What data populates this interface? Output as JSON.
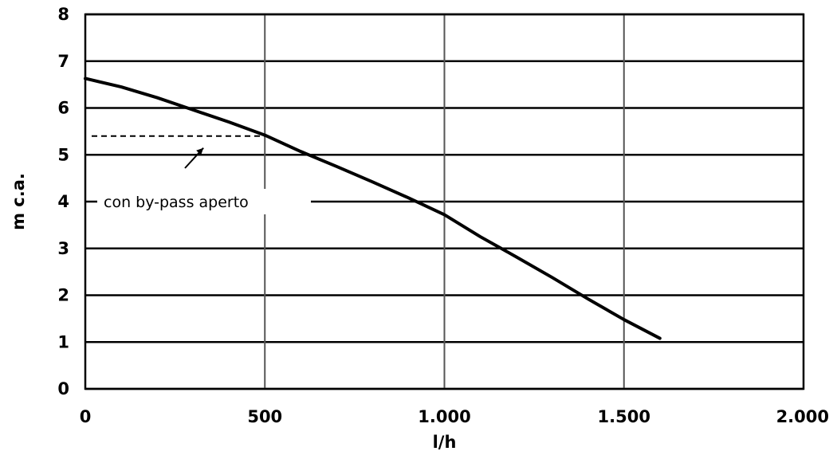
{
  "chart_data": {
    "type": "line",
    "title": "",
    "xlabel": "l/h",
    "ylabel": "m c.a.",
    "xlim": [
      0,
      2000
    ],
    "ylim": [
      0,
      8
    ],
    "x_ticks": [
      0,
      500,
      1000,
      1500,
      2000
    ],
    "x_tick_labels": [
      "0",
      "500",
      "1.000",
      "1.500",
      "2.000"
    ],
    "y_ticks": [
      0,
      1,
      2,
      3,
      4,
      5,
      6,
      7,
      8
    ],
    "y_tick_labels": [
      "0",
      "1",
      "2",
      "3",
      "4",
      "5",
      "6",
      "7",
      "8"
    ],
    "grid": true,
    "legend": "none",
    "series": [
      {
        "x": [
          0,
          100,
          200,
          300,
          400,
          500,
          600,
          700,
          800,
          900,
          1000,
          1100,
          1200,
          1300,
          1400,
          1500,
          1600
        ],
        "y": [
          6.63,
          6.45,
          6.22,
          5.96,
          5.7,
          5.42,
          5.07,
          4.75,
          4.42,
          4.08,
          3.72,
          3.25,
          2.82,
          2.38,
          1.92,
          1.48,
          1.08
        ],
        "color": "#000000"
      }
    ],
    "annotations": [
      {
        "text": "con by-pass aperto",
        "dashed_line": {
          "x": [
            0,
            500
          ],
          "y": 5.4
        },
        "arrow_to": {
          "x": 320,
          "y": 5.35
        },
        "label_position": {
          "x": 600,
          "y": 4.0
        }
      }
    ]
  }
}
